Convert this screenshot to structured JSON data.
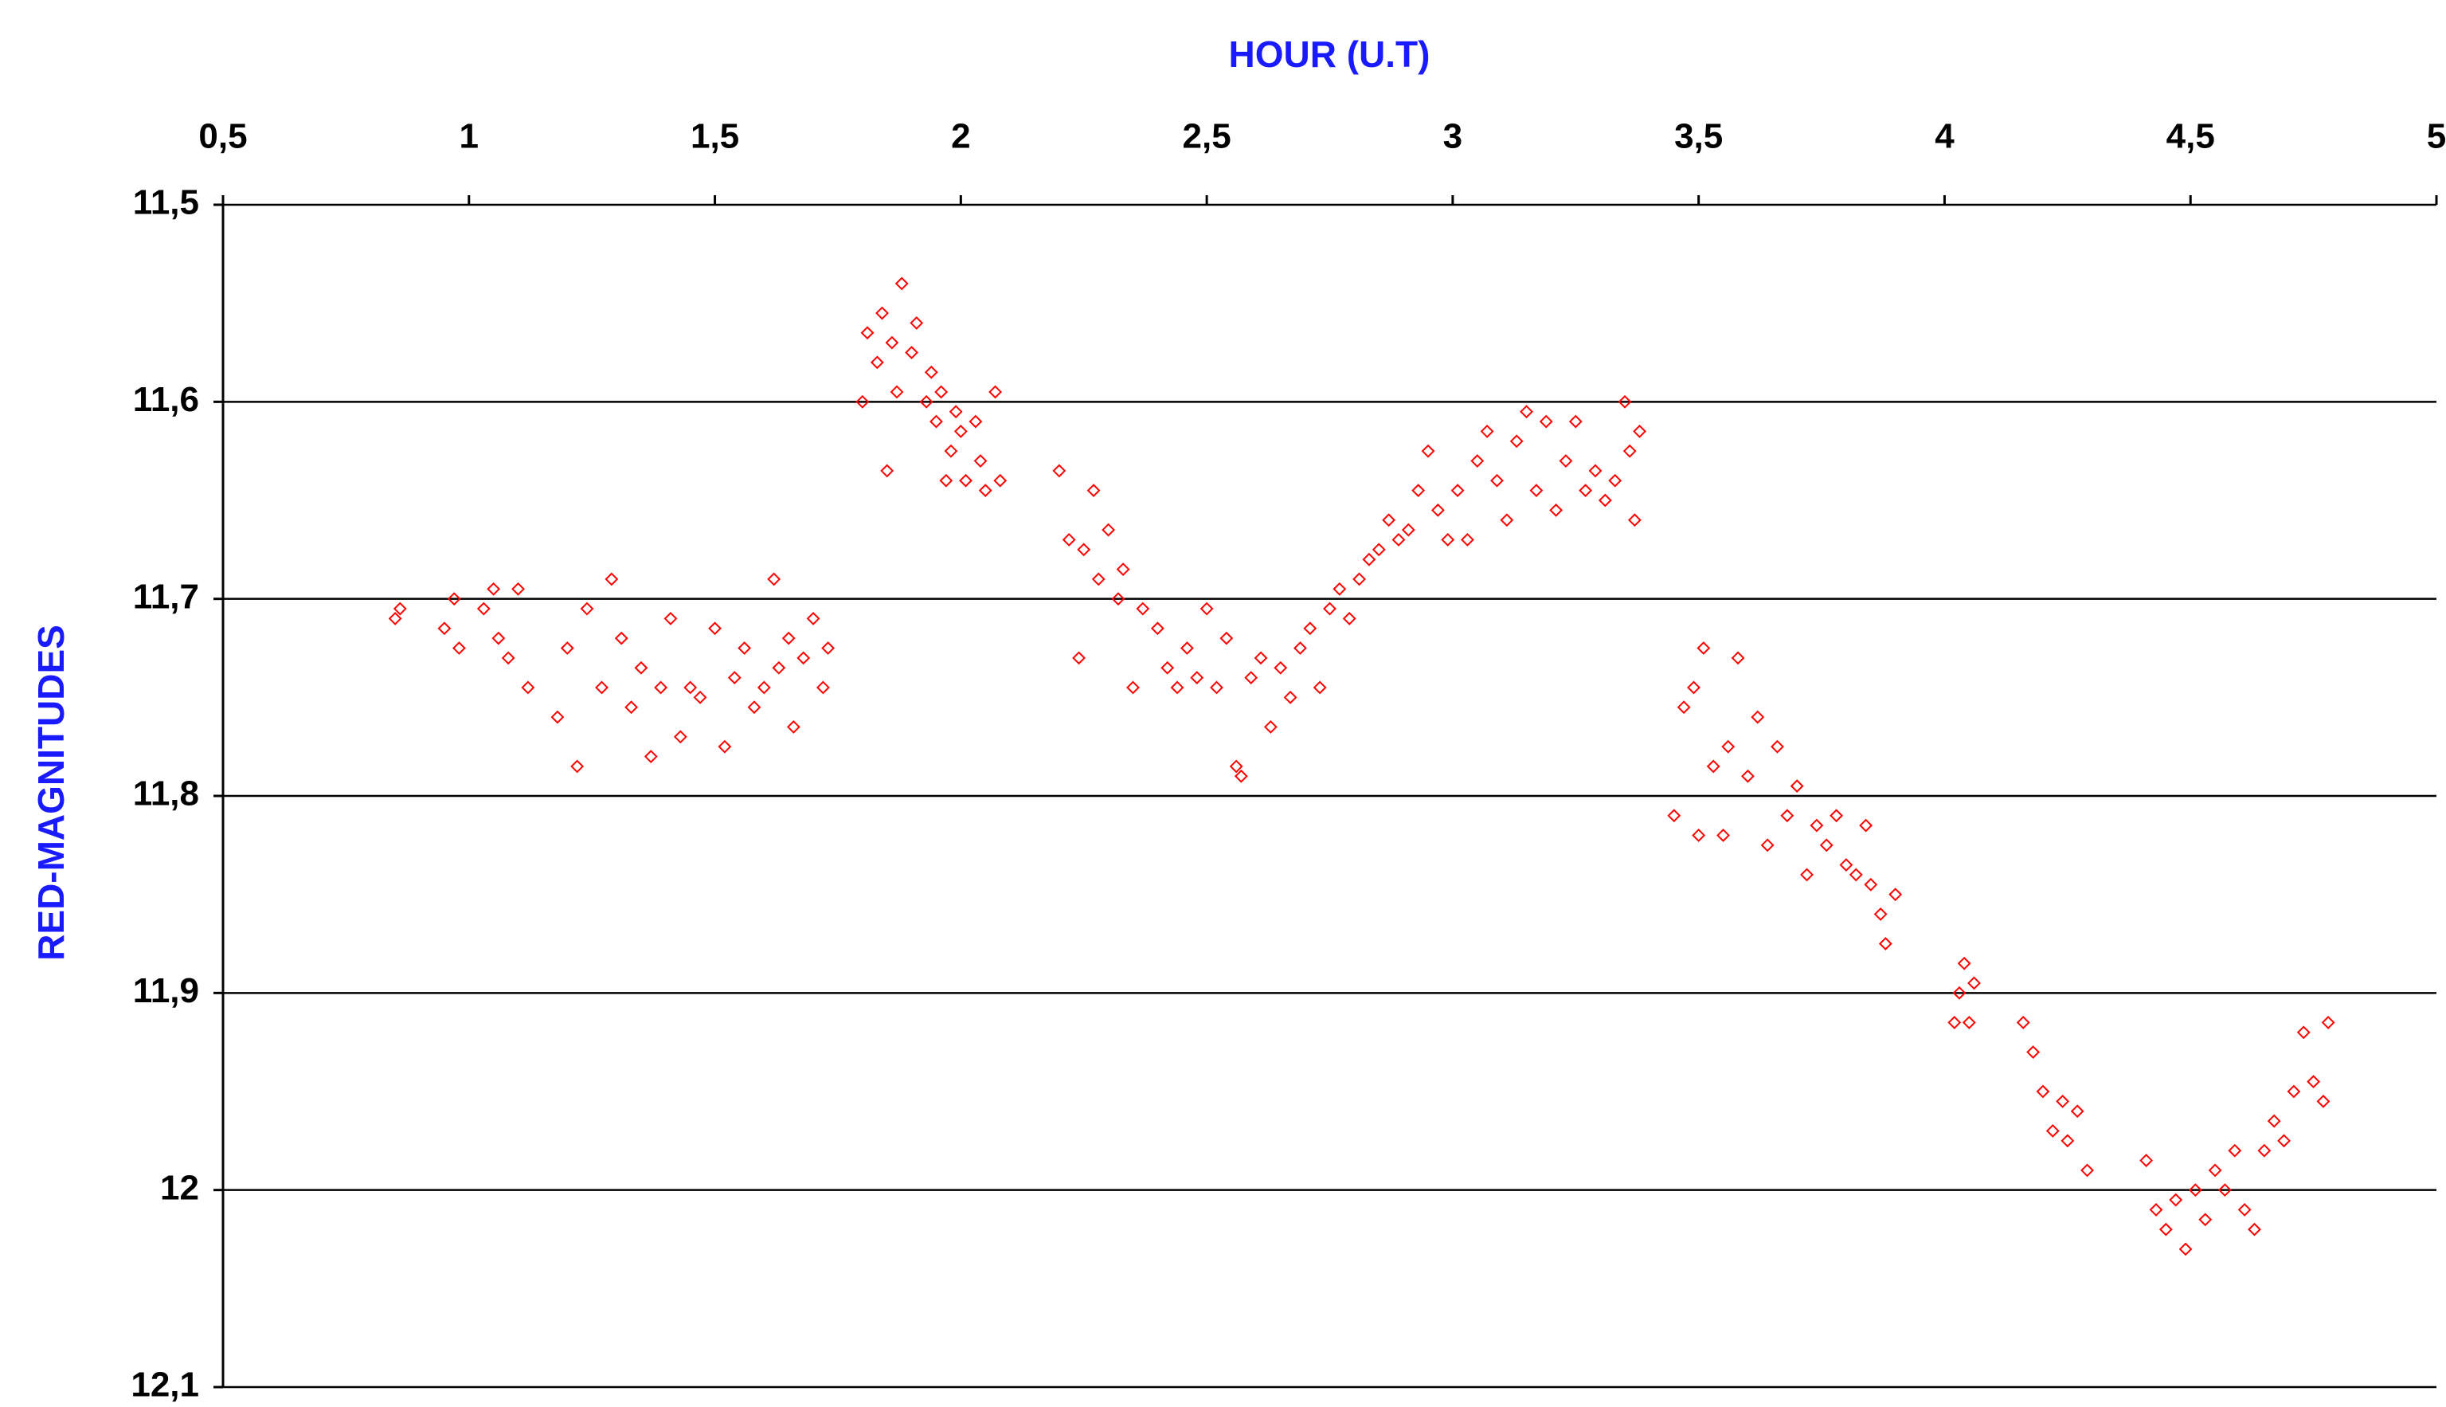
{
  "chart_data": {
    "type": "scatter",
    "x_label": "HOUR (U.T)",
    "y_label": "RED-MAGNITUDES",
    "color": "#ff0000",
    "marker": "diamond",
    "grid": true,
    "y_inverted": true,
    "xlim": [
      0.5,
      5
    ],
    "ylim": [
      11.5,
      12.1
    ],
    "xticks": [
      {
        "value": 0.5,
        "label": "0,5"
      },
      1,
      {
        "value": 1.5,
        "label": "1,5"
      },
      2,
      {
        "value": 2.5,
        "label": "2,5"
      },
      3,
      {
        "value": 3.5,
        "label": "3,5"
      },
      4,
      {
        "value": 4.5,
        "label": "4,5"
      },
      5
    ],
    "yticks": [
      {
        "value": 11.5,
        "label": "11,5"
      },
      {
        "value": 11.6,
        "label": "11,6"
      },
      {
        "value": 11.7,
        "label": "11,7"
      },
      {
        "value": 11.8,
        "label": "11,8"
      },
      {
        "value": 11.9,
        "label": "11,9"
      },
      12,
      {
        "value": 12.1,
        "label": "12,1"
      }
    ],
    "x": [
      0.85,
      0.86,
      0.95,
      0.97,
      0.98,
      1.03,
      1.05,
      1.06,
      1.08,
      1.1,
      1.12,
      1.18,
      1.2,
      1.22,
      1.24,
      1.27,
      1.29,
      1.31,
      1.33,
      1.35,
      1.37,
      1.39,
      1.41,
      1.43,
      1.45,
      1.47,
      1.5,
      1.52,
      1.54,
      1.56,
      1.58,
      1.6,
      1.62,
      1.63,
      1.65,
      1.66,
      1.68,
      1.7,
      1.72,
      1.73,
      1.8,
      1.81,
      1.83,
      1.84,
      1.86,
      1.87,
      1.88,
      1.9,
      1.91,
      1.93,
      1.94,
      1.95,
      1.96,
      1.98,
      1.99,
      2.0,
      2.01,
      2.03,
      2.04,
      2.05,
      2.07,
      2.08,
      1.85,
      1.97,
      2.2,
      2.22,
      2.24,
      2.25,
      2.27,
      2.28,
      2.3,
      2.32,
      2.33,
      2.35,
      2.37,
      2.4,
      2.42,
      2.44,
      2.46,
      2.48,
      2.5,
      2.52,
      2.54,
      2.56,
      2.57,
      2.59,
      2.61,
      2.63,
      2.65,
      2.67,
      2.69,
      2.71,
      2.73,
      2.75,
      2.77,
      2.79,
      2.81,
      2.83,
      2.85,
      2.87,
      2.89,
      2.91,
      2.93,
      2.95,
      2.97,
      2.99,
      3.01,
      3.03,
      3.05,
      3.07,
      3.09,
      3.11,
      3.13,
      3.15,
      3.17,
      3.19,
      3.21,
      3.23,
      3.25,
      3.27,
      3.29,
      3.31,
      3.33,
      3.35,
      3.36,
      3.37,
      3.38,
      3.45,
      3.47,
      3.49,
      3.5,
      3.51,
      3.53,
      3.55,
      3.56,
      3.58,
      3.6,
      3.62,
      3.64,
      3.66,
      3.68,
      3.7,
      3.72,
      3.74,
      3.76,
      3.78,
      3.8,
      3.82,
      3.84,
      3.85,
      3.87,
      3.88,
      3.9,
      4.02,
      4.03,
      4.04,
      4.05,
      4.06,
      4.16,
      4.18,
      4.2,
      4.22,
      4.24,
      4.25,
      4.27,
      4.29,
      4.41,
      4.43,
      4.45,
      4.47,
      4.49,
      4.51,
      4.53,
      4.55,
      4.57,
      4.59,
      4.61,
      4.63,
      4.65,
      4.67,
      4.69,
      4.71,
      4.73,
      4.75,
      4.77,
      4.78
    ],
    "values": [
      11.71,
      11.705,
      11.715,
      11.7,
      11.725,
      11.705,
      11.695,
      11.72,
      11.73,
      11.695,
      11.745,
      11.76,
      11.725,
      11.785,
      11.705,
      11.745,
      11.69,
      11.72,
      11.755,
      11.735,
      11.78,
      11.745,
      11.71,
      11.77,
      11.745,
      11.75,
      11.715,
      11.775,
      11.74,
      11.725,
      11.755,
      11.745,
      11.69,
      11.735,
      11.72,
      11.765,
      11.73,
      11.71,
      11.745,
      11.725,
      11.6,
      11.565,
      11.58,
      11.555,
      11.57,
      11.595,
      11.54,
      11.575,
      11.56,
      11.6,
      11.585,
      11.61,
      11.595,
      11.625,
      11.605,
      11.615,
      11.64,
      11.61,
      11.63,
      11.645,
      11.595,
      11.64,
      11.635,
      11.64,
      11.635,
      11.67,
      11.73,
      11.675,
      11.645,
      11.69,
      11.665,
      11.7,
      11.685,
      11.745,
      11.705,
      11.715,
      11.735,
      11.745,
      11.725,
      11.74,
      11.705,
      11.745,
      11.72,
      11.785,
      11.79,
      11.74,
      11.73,
      11.765,
      11.735,
      11.75,
      11.725,
      11.715,
      11.745,
      11.705,
      11.695,
      11.71,
      11.69,
      11.68,
      11.675,
      11.66,
      11.67,
      11.665,
      11.645,
      11.625,
      11.655,
      11.67,
      11.645,
      11.67,
      11.63,
      11.615,
      11.64,
      11.66,
      11.62,
      11.605,
      11.645,
      11.61,
      11.655,
      11.63,
      11.61,
      11.645,
      11.635,
      11.65,
      11.64,
      11.6,
      11.625,
      11.66,
      11.615,
      11.81,
      11.755,
      11.745,
      11.82,
      11.725,
      11.785,
      11.82,
      11.775,
      11.73,
      11.79,
      11.76,
      11.825,
      11.775,
      11.81,
      11.795,
      11.84,
      11.815,
      11.825,
      11.81,
      11.835,
      11.84,
      11.815,
      11.845,
      11.86,
      11.875,
      11.85,
      11.915,
      11.9,
      11.885,
      11.915,
      11.895,
      11.915,
      11.93,
      11.95,
      11.97,
      11.955,
      11.975,
      11.96,
      11.99,
      11.985,
      12.01,
      12.02,
      12.005,
      12.03,
      12.0,
      12.015,
      11.99,
      12.0,
      11.98,
      12.01,
      12.02,
      11.98,
      11.965,
      11.975,
      11.95,
      11.92,
      11.945,
      11.955,
      11.915
    ]
  }
}
